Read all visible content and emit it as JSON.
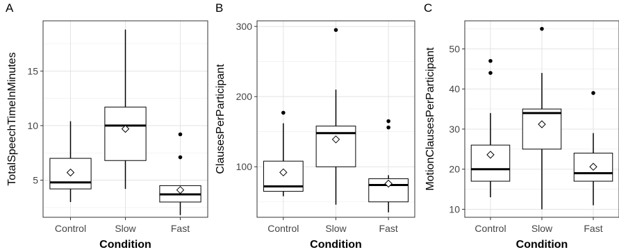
{
  "chart_data": [
    {
      "type": "boxplot",
      "panel_label": "A",
      "xlabel": "Condition",
      "ylabel": "TotalSpeechTimeInMinutes",
      "categories": [
        "Control",
        "Slow",
        "Fast"
      ],
      "ylim": [
        1.6,
        19.6
      ],
      "yticks": [
        5,
        10,
        15
      ],
      "grid": true,
      "boxes": [
        {
          "category": "Control",
          "whisker_low": 3.0,
          "q1": 4.2,
          "median": 4.8,
          "q3": 7.0,
          "whisker_high": 10.4,
          "mean": 5.7,
          "outliers": []
        },
        {
          "category": "Slow",
          "whisker_low": 4.2,
          "q1": 6.8,
          "median": 10.0,
          "q3": 11.7,
          "whisker_high": 18.8,
          "mean": 9.7,
          "outliers": []
        },
        {
          "category": "Fast",
          "whisker_low": 1.8,
          "q1": 3.0,
          "median": 3.7,
          "q3": 4.5,
          "whisker_high": 4.5,
          "mean": 4.1,
          "outliers": [
            7.1,
            9.2
          ]
        }
      ]
    },
    {
      "type": "boxplot",
      "panel_label": "B",
      "xlabel": "Condition",
      "ylabel": "ClausesPerParticipant",
      "categories": [
        "Control",
        "Slow",
        "Fast"
      ],
      "ylim": [
        28,
        308
      ],
      "yticks": [
        100,
        200,
        300
      ],
      "grid": true,
      "boxes": [
        {
          "category": "Control",
          "whisker_low": 58,
          "q1": 65,
          "median": 72,
          "q3": 108,
          "whisker_high": 162,
          "mean": 92,
          "outliers": [
            177
          ]
        },
        {
          "category": "Slow",
          "whisker_low": 46,
          "q1": 100,
          "median": 148,
          "q3": 158,
          "whisker_high": 210,
          "mean": 139,
          "outliers": [
            295
          ]
        },
        {
          "category": "Fast",
          "whisker_low": 35,
          "q1": 50,
          "median": 74,
          "q3": 83,
          "whisker_high": 88,
          "mean": 76,
          "outliers": [
            156,
            165
          ]
        }
      ]
    },
    {
      "type": "boxplot",
      "panel_label": "C",
      "xlabel": "Condition",
      "ylabel": "MotionClausesPerParticipant",
      "categories": [
        "Control",
        "Slow",
        "Fast"
      ],
      "ylim": [
        8,
        57
      ],
      "yticks": [
        10,
        20,
        30,
        40,
        50
      ],
      "grid": true,
      "boxes": [
        {
          "category": "Control",
          "whisker_low": 13,
          "q1": 17,
          "median": 20,
          "q3": 26,
          "whisker_high": 34,
          "mean": 23.6,
          "outliers": [
            44,
            47
          ]
        },
        {
          "category": "Slow",
          "whisker_low": 10,
          "q1": 25,
          "median": 34,
          "q3": 35,
          "whisker_high": 44,
          "mean": 31.2,
          "outliers": [
            55
          ]
        },
        {
          "category": "Fast",
          "whisker_low": 11,
          "q1": 17,
          "median": 19,
          "q3": 24,
          "whisker_high": 29,
          "mean": 20.6,
          "outliers": [
            39
          ]
        }
      ]
    }
  ]
}
